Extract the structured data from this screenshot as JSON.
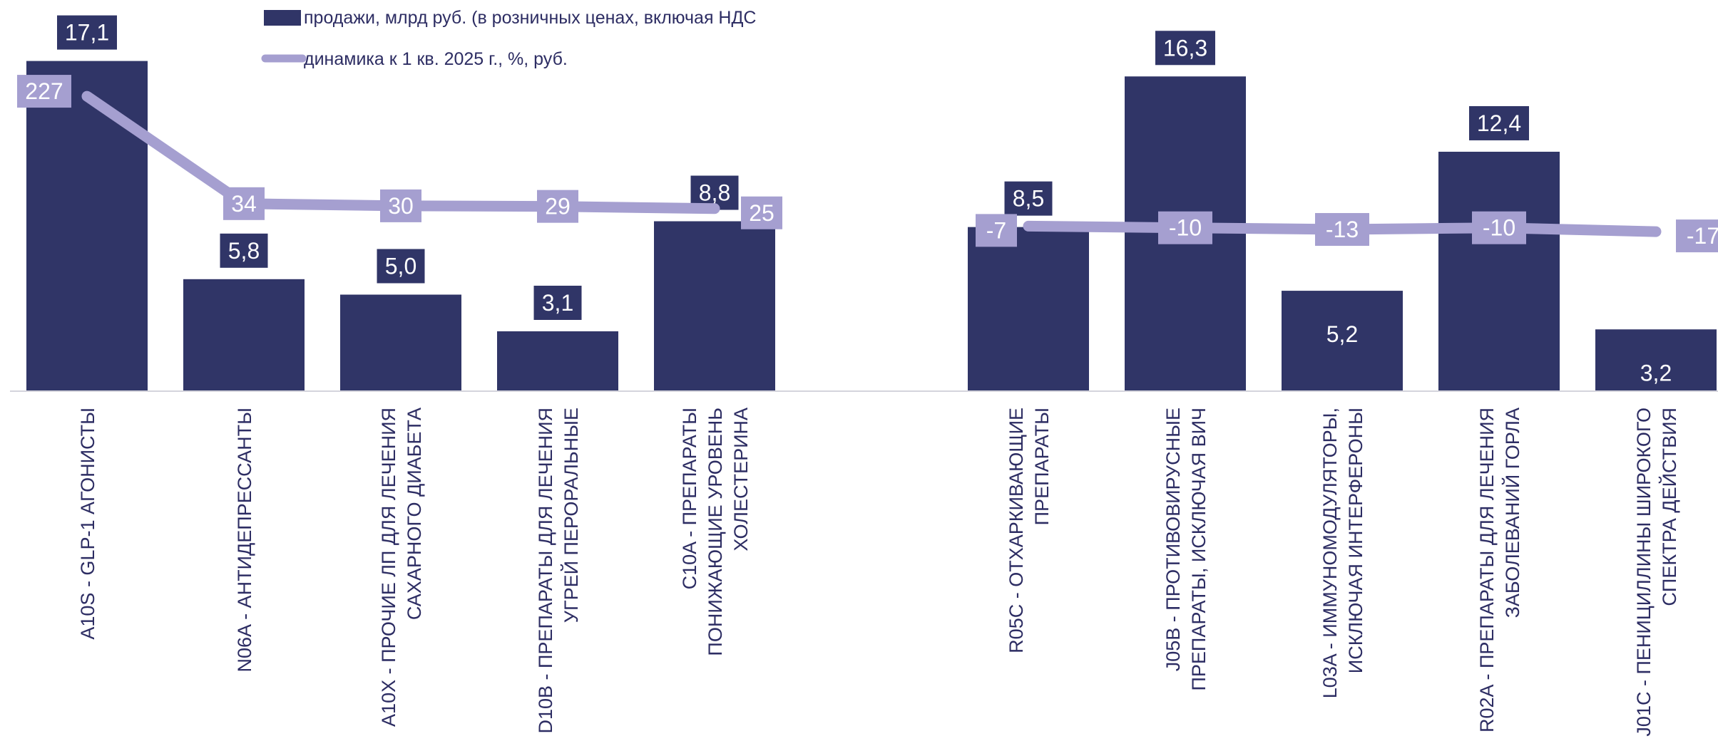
{
  "colors": {
    "bar": "#303567",
    "line": "#a59fd0",
    "axis": "#d4d4dc",
    "label_text": "#2d2d63"
  },
  "legend": {
    "bars_label": "продажи, млрд руб. (в розничных ценах, включая НДС",
    "line_label": "динамика к 1 кв. 2025 г., %, руб."
  },
  "chart_data": {
    "type": "bar",
    "categories": [
      [
        "A10S - GLP-1 АГОНИСТЫ"
      ],
      [
        "N06A - АНТИДЕПРЕССАНТЫ"
      ],
      [
        "A10X - ПРОЧИЕ ЛП ДЛЯ ЛЕЧЕНИЯ",
        "САХАРНОГО ДИАБЕТА"
      ],
      [
        "D10B - ПРЕПАРАТЫ ДЛЯ ЛЕЧЕНИЯ",
        "УГРЕЙ ПЕРОРАЛЬНЫЕ"
      ],
      [
        "C10A - ПРЕПАРАТЫ",
        "ПОНИЖАЮЩИЕ УРОВЕНЬ",
        "ХОЛЕСТЕРИНА"
      ],
      [
        "R05C - ОТХАРКИВАЮЩИЕ",
        "ПРЕПАРАТЫ"
      ],
      [
        "J05B - ПРОТИВОВИРУСНЫЕ",
        "ПРЕПАРАТЫ, ИСКЛЮЧАЯ ВИЧ"
      ],
      [
        "L03A - ИММУНОМОДУЛЯТОРЫ,",
        "ИСКЛЮЧАЯ ИНТЕРФЕРОНЫ"
      ],
      [
        "R02A - ПРЕПАРАТЫ ДЛЯ ЛЕЧЕНИЯ",
        "ЗАБОЛЕВАНИЙ ГОРЛА"
      ],
      [
        "J01C - ПЕНИЦИЛЛИНЫ ШИРОКОГО",
        "СПЕКТРА ДЕЙСТВИЯ"
      ]
    ],
    "groups": [
      [
        0,
        1,
        2,
        3,
        4
      ],
      [
        5,
        6,
        7,
        8,
        9
      ]
    ],
    "series": [
      {
        "name": "продажи, млрд руб. (в розничных ценах, включая НДС",
        "type": "bar",
        "values": [
          17.1,
          5.8,
          5.0,
          3.1,
          8.8,
          8.5,
          16.3,
          5.2,
          12.4,
          3.2
        ],
        "labels": [
          "17,1",
          "5,8",
          "5,0",
          "3,1",
          "8,8",
          "8,5",
          "16,3",
          "5,2",
          "12,4",
          "3,2"
        ]
      },
      {
        "name": "динамика к 1 кв. 2025 г., %, руб.",
        "type": "line",
        "values": [
          227,
          34,
          30,
          29,
          25,
          -7,
          -10,
          -13,
          -10,
          -17
        ],
        "labels": [
          "227",
          "34",
          "30",
          "29",
          "25",
          "-7",
          "-10",
          "-13",
          "-10",
          "-17"
        ]
      }
    ],
    "grid": false,
    "legend_position": "top"
  }
}
